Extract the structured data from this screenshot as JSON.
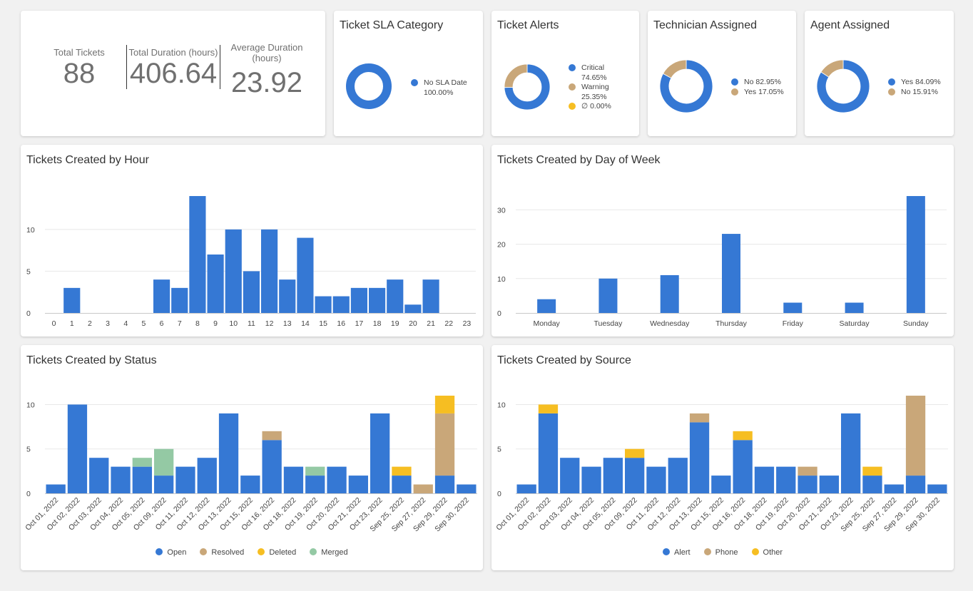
{
  "colors": {
    "blue": "#3578d4",
    "tan": "#c9a779",
    "yellow": "#f6be22",
    "green": "#94c9a4",
    "grid": "#e8e8e8",
    "axis": "#c9c9c9",
    "text": "#444444"
  },
  "kpis": {
    "total_tickets": {
      "label": "Total Tickets",
      "value": "88"
    },
    "total_duration": {
      "label": "Total Duration (hours)",
      "value": "406.64"
    },
    "average_duration": {
      "label": "Average Duration (hours)",
      "value": "23.92"
    }
  },
  "donuts": {
    "sla": {
      "title": "Ticket SLA Category",
      "slices": [
        {
          "label": "No SLA Date",
          "pct_label": "100.00%",
          "value": 100,
          "color": "#3578d4"
        }
      ]
    },
    "alerts": {
      "title": "Ticket Alerts",
      "slices": [
        {
          "label": "Critical",
          "pct_label": "74.65%",
          "value": 74.65,
          "color": "#3578d4"
        },
        {
          "label": "Warning",
          "pct_label": "25.35%",
          "value": 25.35,
          "color": "#c9a779"
        },
        {
          "label": "∅",
          "pct_label": "0.00%",
          "value": 0,
          "color": "#f6be22"
        }
      ]
    },
    "technician": {
      "title": "Technician Assigned",
      "slices": [
        {
          "label": "No",
          "pct_label": "82.95%",
          "value": 82.95,
          "color": "#3578d4"
        },
        {
          "label": "Yes",
          "pct_label": "17.05%",
          "value": 17.05,
          "color": "#c9a779"
        }
      ]
    },
    "agent": {
      "title": "Agent Assigned",
      "slices": [
        {
          "label": "Yes",
          "pct_label": "84.09%",
          "value": 84.09,
          "color": "#3578d4"
        },
        {
          "label": "No",
          "pct_label": "15.91%",
          "value": 15.91,
          "color": "#c9a779"
        }
      ]
    }
  },
  "chart_data": [
    {
      "id": "hour",
      "type": "bar",
      "title": "Tickets Created by Hour",
      "categories": [
        "0",
        "1",
        "2",
        "3",
        "4",
        "5",
        "6",
        "7",
        "8",
        "9",
        "10",
        "11",
        "12",
        "13",
        "14",
        "15",
        "16",
        "17",
        "18",
        "19",
        "20",
        "21",
        "22",
        "23"
      ],
      "values": [
        0,
        3,
        0,
        0,
        0,
        0,
        4,
        3,
        14,
        7,
        10,
        5,
        10,
        4,
        9,
        2,
        2,
        3,
        3,
        4,
        1,
        4,
        0,
        0
      ],
      "yticks": [
        0,
        5,
        10
      ],
      "ylim": [
        0,
        14
      ]
    },
    {
      "id": "dow",
      "type": "bar",
      "title": "Tickets Created by Day of Week",
      "categories": [
        "Monday",
        "Tuesday",
        "Wednesday",
        "Thursday",
        "Friday",
        "Saturday",
        "Sunday"
      ],
      "values": [
        4,
        10,
        11,
        23,
        3,
        3,
        34
      ],
      "yticks": [
        0,
        10,
        20,
        30
      ],
      "ylim": [
        0,
        34
      ]
    },
    {
      "id": "status",
      "type": "bar",
      "stacked": true,
      "title": "Tickets Created by Status",
      "categories": [
        "Oct 01, 2022",
        "Oct 02, 2022",
        "Oct 03, 2022",
        "Oct 04, 2022",
        "Oct 05, 2022",
        "Oct 09, 2022",
        "Oct 11, 2022",
        "Oct 12, 2022",
        "Oct 13, 2022",
        "Oct 15, 2022",
        "Oct 16, 2022",
        "Oct 18, 2022",
        "Oct 19, 2022",
        "Oct 20, 2022",
        "Oct 21, 2022",
        "Oct 23, 2022",
        "Sep 25, 2022",
        "Sep 27, 2022",
        "Sep 29, 2022",
        "Sep 30, 2022"
      ],
      "series": [
        {
          "name": "Open",
          "color": "#3578d4",
          "values": [
            1,
            10,
            4,
            3,
            3,
            2,
            3,
            4,
            9,
            2,
            6,
            3,
            2,
            3,
            2,
            9,
            2,
            0,
            2,
            1
          ]
        },
        {
          "name": "Resolved",
          "color": "#c9a779",
          "values": [
            0,
            0,
            0,
            0,
            0,
            0,
            0,
            0,
            0,
            0,
            1,
            0,
            0,
            0,
            0,
            0,
            0,
            1,
            7,
            0
          ]
        },
        {
          "name": "Deleted",
          "color": "#f6be22",
          "values": [
            0,
            0,
            0,
            0,
            0,
            0,
            0,
            0,
            0,
            0,
            0,
            0,
            0,
            0,
            0,
            0,
            1,
            0,
            2,
            0
          ]
        },
        {
          "name": "Merged",
          "color": "#94c9a4",
          "values": [
            0,
            0,
            0,
            0,
            1,
            3,
            0,
            0,
            0,
            0,
            0,
            0,
            1,
            0,
            0,
            0,
            0,
            0,
            0,
            0
          ]
        }
      ],
      "yticks": [
        0,
        5,
        10
      ],
      "ylim": [
        0,
        11
      ]
    },
    {
      "id": "source",
      "type": "bar",
      "stacked": true,
      "title": "Tickets Created by Source",
      "categories": [
        "Oct 01, 2022",
        "Oct 02, 2022",
        "Oct 03, 2022",
        "Oct 04, 2022",
        "Oct 05, 2022",
        "Oct 09, 2022",
        "Oct 11, 2022",
        "Oct 12, 2022",
        "Oct 13, 2022",
        "Oct 15, 2022",
        "Oct 16, 2022",
        "Oct 18, 2022",
        "Oct 19, 2022",
        "Oct 20, 2022",
        "Oct 21, 2022",
        "Oct 23, 2022",
        "Sep 25, 2022",
        "Sep 27, 2022",
        "Sep 29, 2022",
        "Sep 30, 2022"
      ],
      "series": [
        {
          "name": "Alert",
          "color": "#3578d4",
          "values": [
            1,
            9,
            4,
            3,
            4,
            4,
            3,
            4,
            8,
            2,
            6,
            3,
            3,
            2,
            2,
            9,
            2,
            1,
            2,
            1
          ]
        },
        {
          "name": "Phone",
          "color": "#c9a779",
          "values": [
            0,
            0,
            0,
            0,
            0,
            0,
            0,
            0,
            1,
            0,
            0,
            0,
            0,
            1,
            0,
            0,
            0,
            0,
            9,
            0
          ]
        },
        {
          "name": "Other",
          "color": "#f6be22",
          "values": [
            0,
            1,
            0,
            0,
            0,
            1,
            0,
            0,
            0,
            0,
            1,
            0,
            0,
            0,
            0,
            0,
            1,
            0,
            0,
            0
          ]
        }
      ],
      "yticks": [
        0,
        5,
        10
      ],
      "ylim": [
        0,
        11
      ]
    }
  ]
}
